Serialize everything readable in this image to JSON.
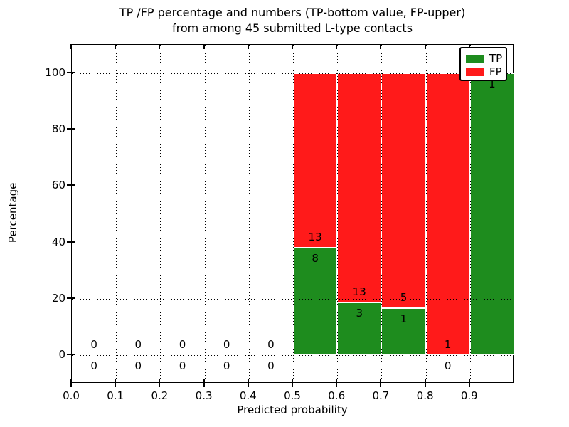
{
  "chart_data": {
    "type": "bar",
    "variant": "stacked-100-percent",
    "title_lines": [
      "TP /FP percentage and numbers (TP-bottom value, FP-upper)",
      "from among 45 submitted L-type contacts"
    ],
    "xlabel": "Predicted probability",
    "ylabel": "Percentage",
    "xlim": [
      0.0,
      1.0
    ],
    "ylim": [
      -10,
      110
    ],
    "x_ticks": [
      {
        "value": 0.0,
        "label": "0.0"
      },
      {
        "value": 0.1,
        "label": "0.1"
      },
      {
        "value": 0.2,
        "label": "0.2"
      },
      {
        "value": 0.3,
        "label": "0.3"
      },
      {
        "value": 0.4,
        "label": "0.4"
      },
      {
        "value": 0.5,
        "label": "0.5"
      },
      {
        "value": 0.6,
        "label": "0.6"
      },
      {
        "value": 0.7,
        "label": "0.7"
      },
      {
        "value": 0.8,
        "label": "0.8"
      },
      {
        "value": 0.9,
        "label": "0.9"
      }
    ],
    "y_ticks": [
      {
        "value": 0,
        "label": "0"
      },
      {
        "value": 20,
        "label": "20"
      },
      {
        "value": 40,
        "label": "40"
      },
      {
        "value": 60,
        "label": "60"
      },
      {
        "value": 80,
        "label": "80"
      },
      {
        "value": 100,
        "label": "100"
      }
    ],
    "grid": {
      "style": "dotted",
      "color": "#000000"
    },
    "total_contacts": 45,
    "bins": [
      {
        "x_start": 0.0,
        "x_end": 0.1,
        "tp": 0,
        "fp": 0
      },
      {
        "x_start": 0.1,
        "x_end": 0.2,
        "tp": 0,
        "fp": 0
      },
      {
        "x_start": 0.2,
        "x_end": 0.3,
        "tp": 0,
        "fp": 0
      },
      {
        "x_start": 0.3,
        "x_end": 0.4,
        "tp": 0,
        "fp": 0
      },
      {
        "x_start": 0.4,
        "x_end": 0.5,
        "tp": 0,
        "fp": 0
      },
      {
        "x_start": 0.5,
        "x_end": 0.6,
        "tp": 8,
        "fp": 13
      },
      {
        "x_start": 0.6,
        "x_end": 0.7,
        "tp": 3,
        "fp": 13
      },
      {
        "x_start": 0.7,
        "x_end": 0.8,
        "tp": 1,
        "fp": 5
      },
      {
        "x_start": 0.8,
        "x_end": 0.9,
        "tp": 0,
        "fp": 1
      },
      {
        "x_start": 0.9,
        "x_end": 1.0,
        "tp": 1,
        "fp": 0
      }
    ],
    "legend": {
      "position": "upper-right",
      "entries": [
        {
          "label": "TP",
          "color": "#1E8C1E"
        },
        {
          "label": "FP",
          "color": "#FF1A1A"
        }
      ]
    },
    "colors": {
      "tp": "#1E8C1E",
      "fp": "#FF1A1A",
      "bar_edge": "#ffffff",
      "axes": "#000000"
    }
  }
}
